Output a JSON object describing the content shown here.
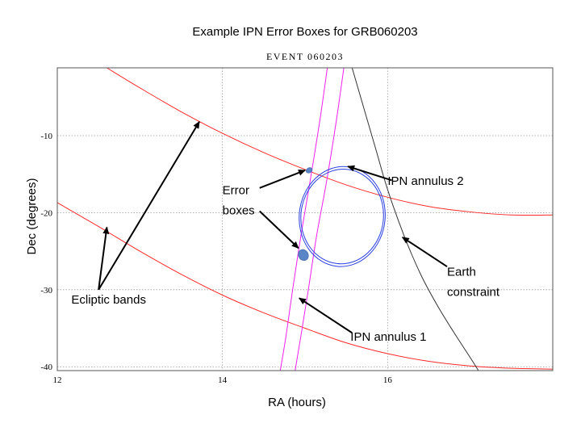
{
  "chart_data": {
    "type": "line",
    "title": "Example IPN Error Boxes for GRB060203",
    "subtitle": "EVENT 060203",
    "xlabel": "RA (hours)",
    "ylabel": "Dec (degrees)",
    "xlim": [
      12,
      18
    ],
    "ylim": [
      -40.5,
      -1.2
    ],
    "x_ticks": [
      12,
      14,
      16
    ],
    "y_ticks": [
      -10,
      -20,
      -30,
      -40
    ],
    "grid": true,
    "series": [
      {
        "name": "Ecliptic bands",
        "color": "#ff2a2a",
        "x": [
          12.6,
          13.0,
          13.5,
          14.0,
          14.5,
          15.0,
          15.5,
          16.0,
          16.5,
          17.0,
          17.5,
          18.0
        ],
        "y": [
          -1.2,
          -3.8,
          -6.9,
          -9.7,
          -12.2,
          -14.4,
          -16.4,
          -18.0,
          -19.2,
          -19.9,
          -20.3,
          -20.3
        ]
      },
      {
        "color": "#ff2a2a",
        "x": [
          12.0,
          12.5,
          13.0,
          13.5,
          14.0,
          14.5,
          15.0,
          15.5,
          16.0,
          16.5,
          17.0,
          17.5,
          18.0
        ],
        "y": [
          -18.7,
          -21.8,
          -25.0,
          -28.0,
          -30.7,
          -33.0,
          -35.0,
          -36.9,
          -38.3,
          -39.3,
          -39.9,
          -40.2,
          -40.3
        ]
      },
      {
        "name": "IPN annulus 1",
        "color": "#ee22ee",
        "x": [
          15.27,
          15.18,
          15.06,
          14.95,
          14.85,
          14.77,
          14.7
        ],
        "y": [
          -1.2,
          -8.0,
          -16.0,
          -23.0,
          -30.0,
          -36.0,
          -40.5
        ]
      },
      {
        "color": "#ee22ee",
        "x": [
          15.47,
          15.38,
          15.26,
          15.14,
          15.04,
          14.95,
          14.88
        ],
        "y": [
          -1.2,
          -8.0,
          -16.0,
          -23.0,
          -30.0,
          -36.0,
          -40.5
        ]
      },
      {
        "name": "IPN annulus 2",
        "color": "#2b3fe0",
        "ellipse": {
          "cx": 15.45,
          "cy": -20.5,
          "rx": 0.52,
          "ry": 6.5
        }
      },
      {
        "color": "#2b3fe0",
        "ellipse": {
          "cx": 15.45,
          "cy": -20.5,
          "rx": 0.5,
          "ry": 6.15
        }
      },
      {
        "name": "Earth constraint",
        "color": "#333333",
        "x": [
          15.57,
          15.85,
          16.0,
          16.2,
          16.4,
          16.6,
          16.8,
          17.0,
          17.1
        ],
        "y": [
          -1.2,
          -11.5,
          -17.0,
          -23.0,
          -28.0,
          -32.0,
          -35.5,
          -38.8,
          -40.5
        ]
      }
    ],
    "annotations": [
      {
        "text": "Ecliptic bands",
        "x": 12.17,
        "y": -31.8
      },
      {
        "text": "Error",
        "x": 14.0,
        "y": -17.6
      },
      {
        "text": "boxes",
        "x": 14.0,
        "y": -20.2
      },
      {
        "text": "IPN annulus 2",
        "x": 16.0,
        "y": -16.4
      },
      {
        "text": "Earth",
        "x": 16.72,
        "y": -28.2
      },
      {
        "text": "constraint",
        "x": 16.72,
        "y": -30.8
      },
      {
        "text": "IPN annulus 1",
        "x": 15.55,
        "y": -36.6
      }
    ],
    "error_boxes": [
      {
        "x": 15.05,
        "y": -14.5
      },
      {
        "x": 14.98,
        "y": -25.5
      }
    ]
  }
}
